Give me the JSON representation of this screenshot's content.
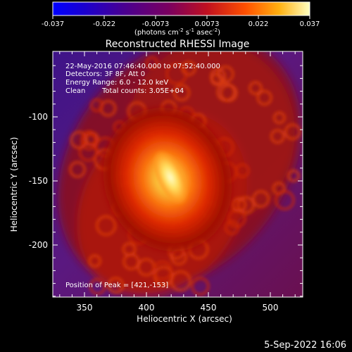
{
  "colorbar": {
    "ticks": [
      "-0.037",
      "-0.022",
      "-0.0073",
      "0.0073",
      "0.022",
      "0.037"
    ],
    "units_prefix": "(photons cm",
    "units_sup1": "-2",
    "units_mid1": " s",
    "units_sup2": "-1",
    "units_mid2": " asec",
    "units_sup3": "-2",
    "units_suffix": ")"
  },
  "title": "Reconstructed RHESSI Image",
  "overlay": {
    "time": "22-May-2016 07:46:40.000 to 07:52:40.000",
    "detectors": "Detectors: 3F 8F, Att 0",
    "energy": "Energy Range: 6.0 - 12.0 keV",
    "method": "Clean",
    "total_counts": "Total counts: 3.05E+04",
    "peak": "Position of Peak = [421,-153]"
  },
  "axes": {
    "xlabel": "Heliocentric X (arcsec)",
    "ylabel": "Heliocentric Y (arcsec)",
    "xticks": [
      "350",
      "400",
      "450",
      "500"
    ],
    "yticks": [
      "-100",
      "-150",
      "-200"
    ]
  },
  "footer_date": "5-Sep-2022 16:06",
  "colors": {
    "bg": "#000000",
    "background_purple": "#4a1a8a",
    "source_peak": "#ffff90",
    "source_core": "#ff8010",
    "ring": "#b01400"
  }
}
